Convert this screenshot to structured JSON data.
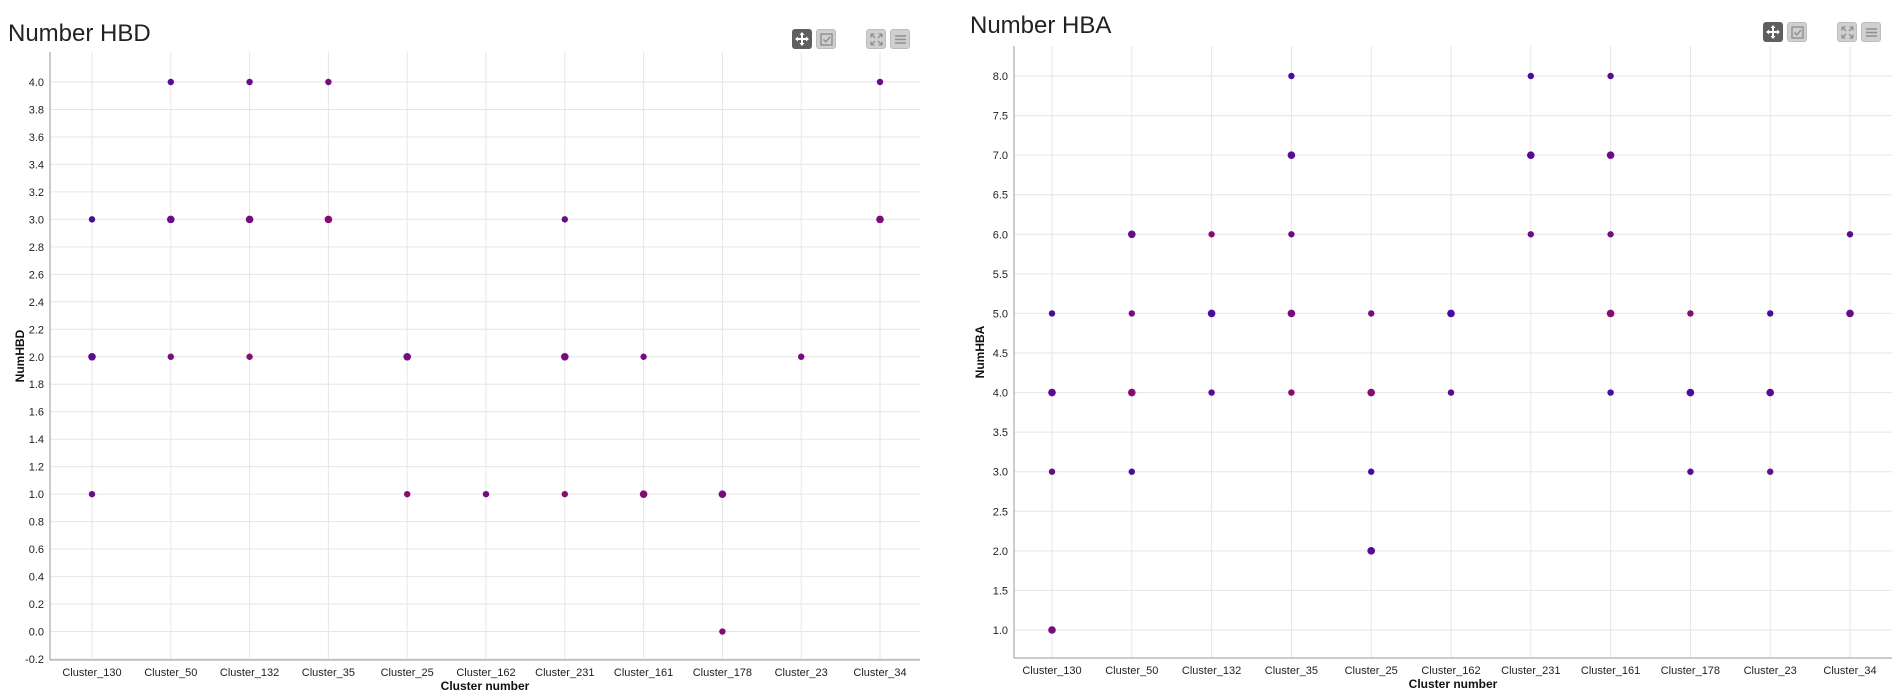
{
  "toolbar": {
    "icons": [
      "move-icon",
      "select-icon",
      "expand-icon",
      "menu-icon"
    ],
    "active_color": "#5f5f5f",
    "inactive_color": "#cfcfcf"
  },
  "colors": {
    "grid": "#e6e6e6",
    "axis": "#999999",
    "point_palette": [
      "#4b0aa8",
      "#5a0a9a",
      "#6a0a8e",
      "#7a0a82",
      "#8a0a70"
    ]
  },
  "chart_data": [
    {
      "type": "scatter",
      "title": "Number HBD",
      "xlabel": "Cluster number",
      "ylabel": "NumHBD",
      "categories": [
        "Cluster_130",
        "Cluster_50",
        "Cluster_132",
        "Cluster_35",
        "Cluster_25",
        "Cluster_162",
        "Cluster_231",
        "Cluster_161",
        "Cluster_178",
        "Cluster_23",
        "Cluster_34"
      ],
      "ylim": [
        -0.2,
        4.0
      ],
      "yticks": [
        "-0.2",
        "0.0",
        "0.2",
        "0.4",
        "0.6",
        "0.8",
        "1.0",
        "1.2",
        "1.4",
        "1.6",
        "1.8",
        "2.0",
        "2.2",
        "2.4",
        "2.6",
        "2.8",
        "3.0",
        "3.2",
        "3.4",
        "3.6",
        "3.8",
        "4.0"
      ],
      "grid": true,
      "legend": "none",
      "points": [
        {
          "x": "Cluster_130",
          "y": 3.0
        },
        {
          "x": "Cluster_130",
          "y": 2.0
        },
        {
          "x": "Cluster_130",
          "y": 1.0
        },
        {
          "x": "Cluster_50",
          "y": 4.0
        },
        {
          "x": "Cluster_50",
          "y": 3.0
        },
        {
          "x": "Cluster_50",
          "y": 2.0
        },
        {
          "x": "Cluster_132",
          "y": 4.0
        },
        {
          "x": "Cluster_132",
          "y": 3.0
        },
        {
          "x": "Cluster_132",
          "y": 2.0
        },
        {
          "x": "Cluster_35",
          "y": 4.0
        },
        {
          "x": "Cluster_35",
          "y": 3.0
        },
        {
          "x": "Cluster_25",
          "y": 2.0
        },
        {
          "x": "Cluster_25",
          "y": 1.0
        },
        {
          "x": "Cluster_162",
          "y": 1.0
        },
        {
          "x": "Cluster_231",
          "y": 3.0
        },
        {
          "x": "Cluster_231",
          "y": 2.0
        },
        {
          "x": "Cluster_231",
          "y": 1.0
        },
        {
          "x": "Cluster_161",
          "y": 2.0
        },
        {
          "x": "Cluster_161",
          "y": 1.0
        },
        {
          "x": "Cluster_178",
          "y": 1.0
        },
        {
          "x": "Cluster_178",
          "y": 0.0
        },
        {
          "x": "Cluster_23",
          "y": 2.0
        },
        {
          "x": "Cluster_34",
          "y": 4.0
        },
        {
          "x": "Cluster_34",
          "y": 3.0
        }
      ]
    },
    {
      "type": "scatter",
      "title": "Number HBA",
      "xlabel": "Cluster number",
      "ylabel": "NumHBA",
      "categories": [
        "Cluster_130",
        "Cluster_50",
        "Cluster_132",
        "Cluster_35",
        "Cluster_25",
        "Cluster_162",
        "Cluster_231",
        "Cluster_161",
        "Cluster_178",
        "Cluster_23",
        "Cluster_34"
      ],
      "ylim": [
        1.0,
        8.0
      ],
      "yticks": [
        "1.0",
        "1.5",
        "2.0",
        "2.5",
        "3.0",
        "3.5",
        "4.0",
        "4.5",
        "5.0",
        "5.5",
        "6.0",
        "6.5",
        "7.0",
        "7.5",
        "8.0"
      ],
      "grid": true,
      "legend": "none",
      "points": [
        {
          "x": "Cluster_130",
          "y": 5.0
        },
        {
          "x": "Cluster_130",
          "y": 4.0
        },
        {
          "x": "Cluster_130",
          "y": 3.0
        },
        {
          "x": "Cluster_130",
          "y": 1.0
        },
        {
          "x": "Cluster_50",
          "y": 6.0
        },
        {
          "x": "Cluster_50",
          "y": 5.0
        },
        {
          "x": "Cluster_50",
          "y": 4.0
        },
        {
          "x": "Cluster_50",
          "y": 3.0
        },
        {
          "x": "Cluster_132",
          "y": 6.0
        },
        {
          "x": "Cluster_132",
          "y": 5.0
        },
        {
          "x": "Cluster_132",
          "y": 4.0
        },
        {
          "x": "Cluster_35",
          "y": 8.0
        },
        {
          "x": "Cluster_35",
          "y": 7.0
        },
        {
          "x": "Cluster_35",
          "y": 6.0
        },
        {
          "x": "Cluster_35",
          "y": 5.0
        },
        {
          "x": "Cluster_35",
          "y": 4.0
        },
        {
          "x": "Cluster_25",
          "y": 5.0
        },
        {
          "x": "Cluster_25",
          "y": 4.0
        },
        {
          "x": "Cluster_25",
          "y": 3.0
        },
        {
          "x": "Cluster_25",
          "y": 2.0
        },
        {
          "x": "Cluster_162",
          "y": 5.0
        },
        {
          "x": "Cluster_162",
          "y": 4.0
        },
        {
          "x": "Cluster_231",
          "y": 8.0
        },
        {
          "x": "Cluster_231",
          "y": 7.0
        },
        {
          "x": "Cluster_231",
          "y": 6.0
        },
        {
          "x": "Cluster_161",
          "y": 8.0
        },
        {
          "x": "Cluster_161",
          "y": 7.0
        },
        {
          "x": "Cluster_161",
          "y": 6.0
        },
        {
          "x": "Cluster_161",
          "y": 5.0
        },
        {
          "x": "Cluster_161",
          "y": 4.0
        },
        {
          "x": "Cluster_178",
          "y": 5.0
        },
        {
          "x": "Cluster_178",
          "y": 4.0
        },
        {
          "x": "Cluster_178",
          "y": 3.0
        },
        {
          "x": "Cluster_23",
          "y": 5.0
        },
        {
          "x": "Cluster_23",
          "y": 4.0
        },
        {
          "x": "Cluster_23",
          "y": 3.0
        },
        {
          "x": "Cluster_34",
          "y": 6.0
        },
        {
          "x": "Cluster_34",
          "y": 5.0
        }
      ]
    }
  ]
}
